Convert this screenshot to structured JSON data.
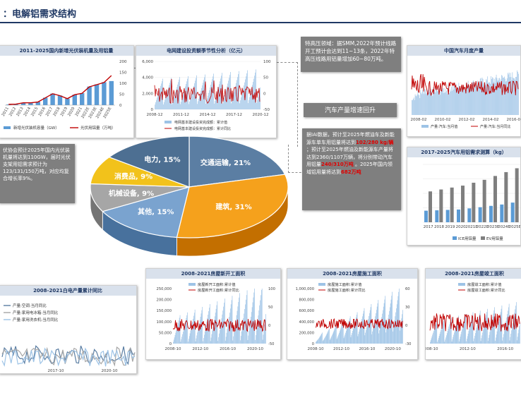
{
  "page": {
    "title": "：电解铝需求结构"
  },
  "notes": {
    "uhv": "特高压领域：据SMM,2022年预计线路开工预计会达到11~13条，2022年特高压线路用铝量增加60~80万吨。",
    "auto_title": "汽车产量增速回升",
    "auto_lines": [
      {
        "text": "据IAI数据，预计至2025年燃油车及新能源车单车用铝量将达到",
        "red": "102/280 kg/辆"
      },
      {
        "text": "；预计至2025年燃油及新能源车产量将达到2360/1107万辆，将分别带动汽车用铝量",
        "red": "240/310万吨"
      },
      {
        "text": "。2025年国内领域铝用量将达到",
        "red": "682万吨"
      }
    ],
    "pv": "伏协会预计2025年国内光伏装机量将达到110GW，届时光伏支架用铝需求预计为123/131/150万吨，对应均复合增长率9%。"
  },
  "pie": {
    "slices": [
      {
        "label": "交通运输, 21%",
        "value": 21,
        "color": "#5b7ea3"
      },
      {
        "label": "建筑, 31%",
        "value": 31,
        "color": "#f5a11c"
      },
      {
        "label": "其他, 15%",
        "value": 15,
        "color": "#7aa3cf"
      },
      {
        "label": "机械设备, 9%",
        "value": 9,
        "color": "#a6a6a6"
      },
      {
        "label": "消费品, 9%",
        "value": 9,
        "color": "#f2c21b"
      },
      {
        "label": "电力, 15%",
        "value": 15,
        "color": "#4d6f92"
      }
    ]
  },
  "chart_data": [
    {
      "type": "bar",
      "title": "2011-2025国内新增光伏装机量及用铝量",
      "categories": [
        "2011",
        "2012",
        "2013",
        "2014",
        "2015",
        "2016",
        "2017",
        "2018",
        "2019",
        "2020",
        "2021",
        "2022E",
        "2023E",
        "2024E",
        "2025E"
      ],
      "series": [
        {
          "name": "新增光伏装机容量（GW）",
          "values": [
            3,
            4,
            11,
            11,
            15,
            34,
            53,
            44,
            30,
            48,
            55,
            85,
            95,
            105,
            110
          ],
          "color": "#5b9bd5"
        },
        {
          "name": "光伏用铝量（万吨）",
          "values": [
            4,
            5,
            12,
            12,
            16,
            37,
            58,
            48,
            33,
            53,
            60,
            93,
            104,
            115,
            150
          ],
          "color": "#c00000"
        }
      ],
      "ylim": [
        0,
        200
      ],
      "yticks": [
        "0",
        "50",
        "100",
        "150",
        "200"
      ]
    },
    {
      "type": "bar",
      "title": "电网建设投资额季节性分析（亿元）",
      "categories": [
        "2008-12",
        "2011-12",
        "2014-12",
        "2017-12",
        "2020-12"
      ],
      "series": [
        {
          "name": "电网基本建设投资完成额：累计值",
          "color": "#9dc3e6"
        },
        {
          "name": "电网基本建设投资完成额：累计同比",
          "color": "#c00000"
        }
      ],
      "ylim": [
        0,
        6000
      ],
      "yticks": [
        "0",
        "2,000",
        "4,000",
        "6,000"
      ],
      "y2ticks": [
        "-50",
        "0",
        "50",
        "100"
      ]
    },
    {
      "type": "line",
      "title": "中国汽车月度产量",
      "categories": [
        "2008-02",
        "2010-02",
        "2012-02",
        "2014-02",
        "2016-02"
      ],
      "series": [
        {
          "name": "产量:汽车:当月值",
          "color": "#9dc3e6"
        },
        {
          "name": "产量:汽车:当月同比",
          "color": "#c00000"
        }
      ]
    },
    {
      "type": "bar",
      "title": "2017-2025汽车用铝需求测算（kg）",
      "categories": [
        "2017",
        "2018",
        "2019",
        "2020",
        "2021E",
        "2022E",
        "2023E",
        "2024E",
        "2025E"
      ],
      "series": [
        {
          "name": "ICE用铝量",
          "values": [
            60,
            62,
            64,
            66,
            72,
            78,
            85,
            92,
            102
          ],
          "color": "#5b9bd5"
        },
        {
          "name": "EV用铝量",
          "values": [
            160,
            170,
            180,
            190,
            205,
            220,
            240,
            260,
            280
          ],
          "color": "#7f7f7f"
        }
      ]
    },
    {
      "type": "line",
      "title": "2008-2021白电产量累计同比",
      "x": [
        "2017-10",
        "2020-10"
      ],
      "series": [
        {
          "name": "产量:空调:当月同比",
          "color": "#5b7ea3"
        },
        {
          "name": "产量:家用电冰箱:当月同比",
          "color": "#a6a6a6"
        },
        {
          "name": "产量:家用洗衣机:当月同比",
          "color": "#9dc3e6"
        }
      ]
    },
    {
      "type": "bar",
      "title": "2008-2021房屋新开工面积",
      "categories": [
        "2008-10",
        "2012-10",
        "2016-10",
        "2020-10"
      ],
      "series": [
        {
          "name": "房屋新开工面积:累计值",
          "color": "#9dc3e6"
        },
        {
          "name": "房屋新开工面积:累计同比",
          "color": "#c00000"
        }
      ],
      "yticks": [
        "0",
        "50,000",
        "100,000",
        "150,000",
        "200,000",
        "250,000"
      ],
      "y2ticks": [
        "-50",
        "0",
        "50",
        "100"
      ]
    },
    {
      "type": "bar",
      "title": "2008-2021房屋施工面积",
      "categories": [
        "2008-10",
        "2012-10",
        "2016-10",
        "2020-10"
      ],
      "series": [
        {
          "name": "房屋施工面积:累计值",
          "color": "#9dc3e6"
        },
        {
          "name": "房屋施工面积:累计同比",
          "color": "#c00000"
        }
      ],
      "yticks": [
        "0",
        "200,000",
        "400,000",
        "600,000",
        "800,000",
        "1,000,000"
      ],
      "y2ticks": [
        "-30",
        "0",
        "30",
        "60"
      ]
    },
    {
      "type": "bar",
      "title": "2008-2021房屋竣工面积",
      "categories": [
        "2008-10",
        "2012-10",
        "2016-10"
      ],
      "series": [
        {
          "name": "房屋竣工面积:累计值",
          "color": "#9dc3e6"
        },
        {
          "name": "房屋竣工面积:累计同比",
          "color": "#c00000"
        }
      ]
    }
  ]
}
